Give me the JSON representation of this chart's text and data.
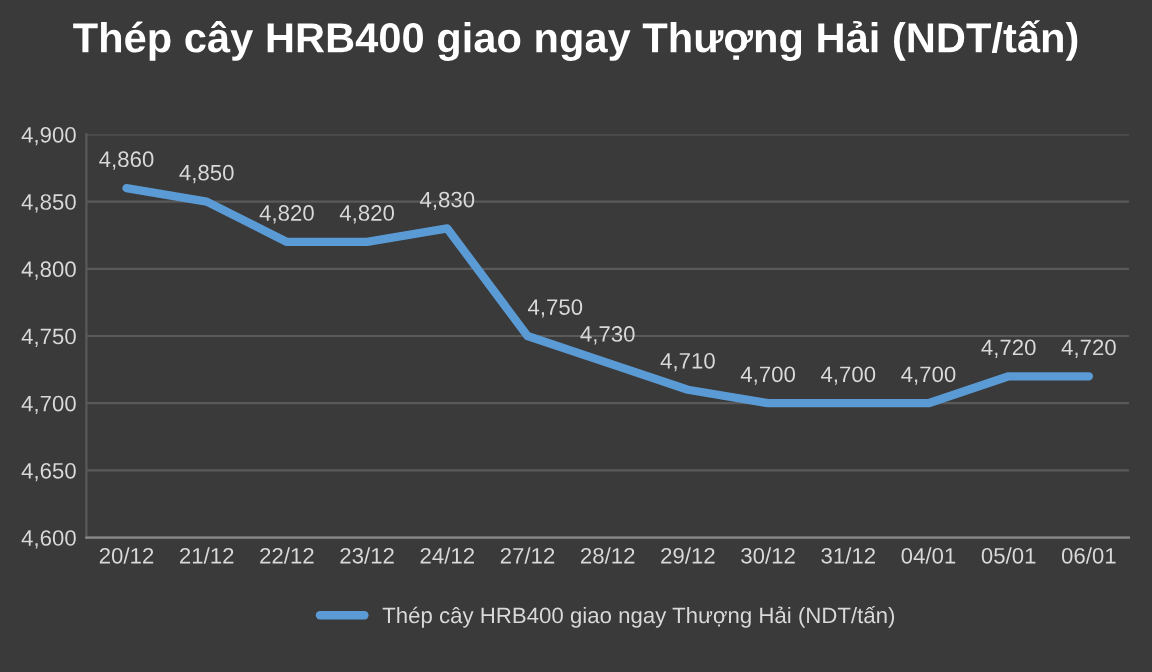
{
  "chart_data": {
    "type": "line",
    "title": "Thép cây HRB400 giao ngay Thượng Hải (NDT/tấn)",
    "categories": [
      "20/12",
      "21/12",
      "22/12",
      "23/12",
      "24/12",
      "27/12",
      "28/12",
      "29/12",
      "30/12",
      "31/12",
      "04/01",
      "05/01",
      "06/01"
    ],
    "series": [
      {
        "name": "Thép cây HRB400 giao ngay Thượng Hải (NDT/tấn)",
        "color": "#5b9bd5",
        "values": [
          4860,
          4850,
          4820,
          4820,
          4830,
          4750,
          4730,
          4710,
          4700,
          4700,
          4700,
          4720,
          4720
        ]
      }
    ],
    "ylim": [
      4600,
      4900
    ],
    "yticks": [
      {
        "value": 4600,
        "label": "4,600"
      },
      {
        "value": 4650,
        "label": "4,650"
      },
      {
        "value": 4700,
        "label": "4,700"
      },
      {
        "value": 4750,
        "label": "4,750"
      },
      {
        "value": 4800,
        "label": "4,800"
      },
      {
        "value": 4850,
        "label": "4,850"
      },
      {
        "value": 4900,
        "label": "4,900"
      }
    ],
    "value_labels": [
      "4,860",
      "4,850",
      "4,820",
      "4,820",
      "4,830",
      "4,750",
      "4,730",
      "4,710",
      "4,700",
      "4,700",
      "4,700",
      "4,720",
      "4,720"
    ],
    "grid": "y",
    "legend": "bottom",
    "marker": "none",
    "line_style": "solid"
  }
}
